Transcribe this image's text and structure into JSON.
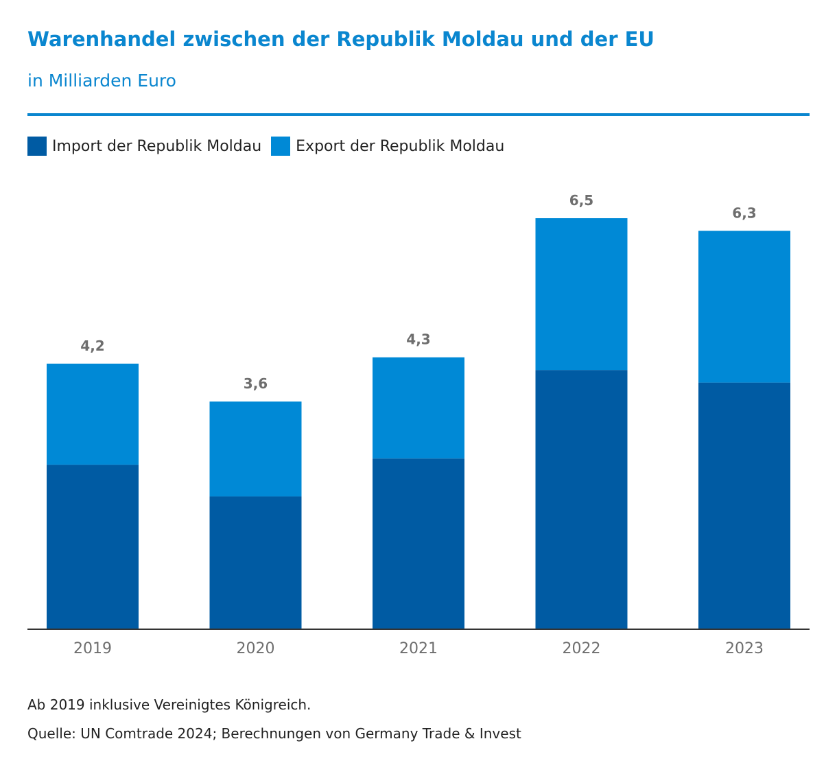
{
  "title": "Warenhandel zwischen der Republik Moldau und der EU",
  "subtitle": "in Milliarden Euro",
  "colors": {
    "title": "#0a86cf",
    "rule": "#0a86cf",
    "import": "#005ba3",
    "export": "#0089d6",
    "total_label": "#6e6e6e",
    "axis_label": "#6e6e6e",
    "axis_line": "#333333"
  },
  "footnote": "Ab 2019 inklusive Vereinigtes Königreich.",
  "source": "Quelle: UN Comtrade 2024; Berechnungen von Germany Trade & Invest",
  "chart_data": {
    "type": "bar",
    "stacked": true,
    "categories": [
      "2019",
      "2020",
      "2021",
      "2022",
      "2023"
    ],
    "series": [
      {
        "name": "Import der Republik Moldau",
        "values": [
          2.6,
          2.1,
          2.7,
          4.1,
          3.9
        ]
      },
      {
        "name": "Export der Republik Moldau",
        "values": [
          1.6,
          1.5,
          1.6,
          2.4,
          2.4
        ]
      }
    ],
    "totals": [
      "4,2",
      "3,6",
      "4,3",
      "6,5",
      "6,3"
    ],
    "ylim": [
      0,
      6.5
    ],
    "grid": false,
    "legend": "top-left",
    "xlabel": "",
    "ylabel": ""
  }
}
